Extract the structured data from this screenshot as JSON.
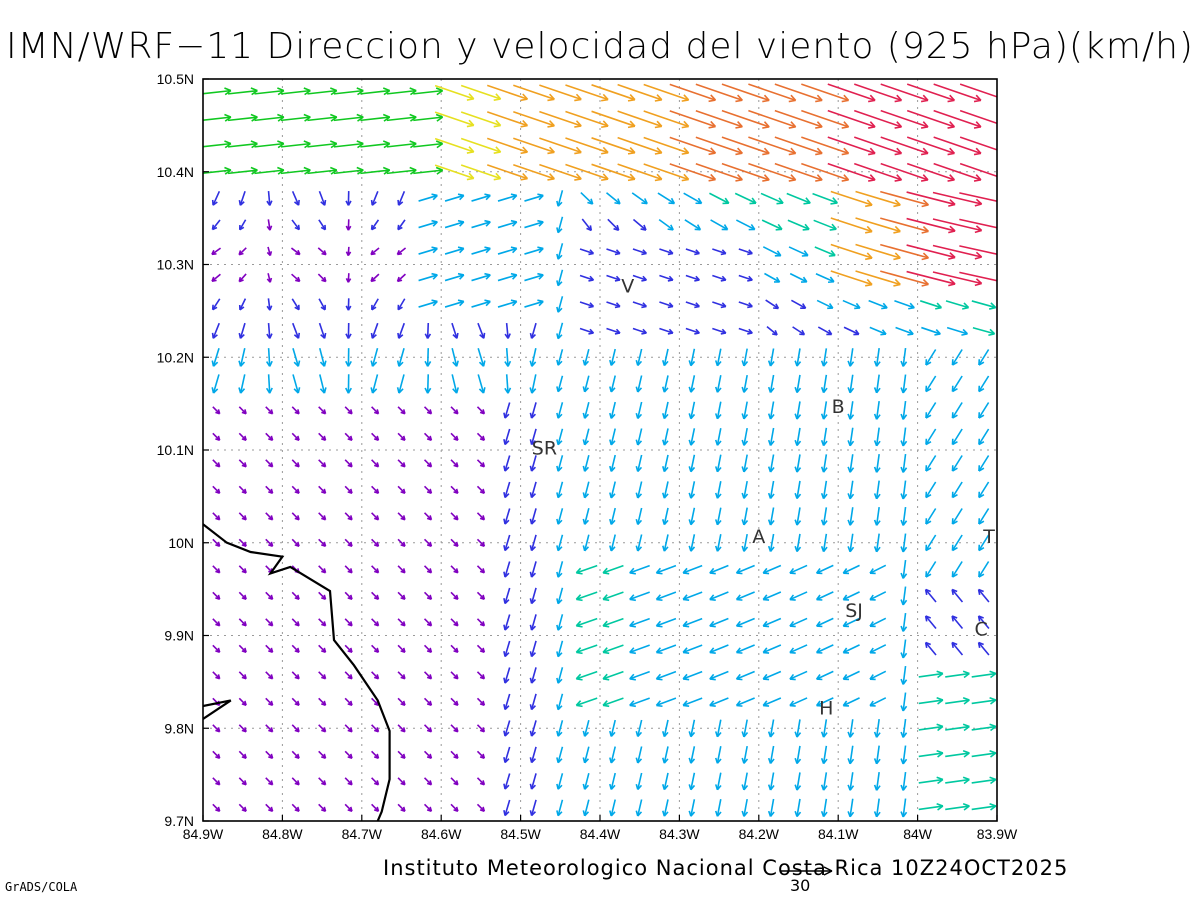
{
  "title": "IMN/WRF−11 Direccion y velocidad del viento (925 hPa)(km/h)",
  "footer": "Instituto Meteorologico Nacional Costa Rica 10Z24OCT2025",
  "credit": "GrADS/COLA",
  "scale_label": "30",
  "map": {
    "lon_range": [
      -84.9,
      -83.9
    ],
    "lat_range": [
      9.7,
      10.5
    ],
    "grid": true,
    "lon_ticks": [
      {
        "v": -84.9,
        "label": "84.9W"
      },
      {
        "v": -84.8,
        "label": "84.8W"
      },
      {
        "v": -84.7,
        "label": "84.7W"
      },
      {
        "v": -84.6,
        "label": "84.6W"
      },
      {
        "v": -84.5,
        "label": "84.5W"
      },
      {
        "v": -84.4,
        "label": "84.4W"
      },
      {
        "v": -84.3,
        "label": "84.3W"
      },
      {
        "v": -84.2,
        "label": "84.2W"
      },
      {
        "v": -84.1,
        "label": "84.1W"
      },
      {
        "v": -84.0,
        "label": "84W"
      },
      {
        "v": -83.9,
        "label": "83.9W"
      }
    ],
    "lat_ticks": [
      {
        "v": 10.5,
        "label": "10.5N"
      },
      {
        "v": 10.4,
        "label": "10.4N"
      },
      {
        "v": 10.3,
        "label": "10.3N"
      },
      {
        "v": 10.2,
        "label": "10.2N"
      },
      {
        "v": 10.1,
        "label": "10.1N"
      },
      {
        "v": 10.0,
        "label": "10N"
      },
      {
        "v": 9.9,
        "label": "9.9N"
      },
      {
        "v": 9.8,
        "label": "9.8N"
      },
      {
        "v": 9.7,
        "label": "9.7N"
      }
    ],
    "cities": [
      {
        "label": "V",
        "lon": -84.365,
        "lat": 10.27
      },
      {
        "label": "SR",
        "lon": -84.47,
        "lat": 10.095
      },
      {
        "label": "B",
        "lon": -84.1,
        "lat": 10.14
      },
      {
        "label": "A",
        "lon": -84.2,
        "lat": 10.0
      },
      {
        "label": "SJ",
        "lon": -84.08,
        "lat": 9.92
      },
      {
        "label": "C",
        "lon": -83.92,
        "lat": 9.9
      },
      {
        "label": "H",
        "lon": -84.115,
        "lat": 9.815
      },
      {
        "label": "T",
        "lon": -83.91,
        "lat": 10.0
      }
    ],
    "coastline": [
      [
        [
          -84.9,
          10.02
        ],
        [
          -84.87,
          10.0
        ],
        [
          -84.84,
          9.99
        ],
        [
          -84.8,
          9.985
        ],
        [
          -84.815,
          9.967
        ],
        [
          -84.79,
          9.974
        ],
        [
          -84.74,
          9.948
        ],
        [
          -84.735,
          9.895
        ],
        [
          -84.71,
          9.868
        ],
        [
          -84.68,
          9.83
        ],
        [
          -84.665,
          9.797
        ],
        [
          -84.665,
          9.745
        ],
        [
          -84.675,
          9.71
        ],
        [
          -84.68,
          9.7
        ]
      ],
      [
        [
          -84.9,
          9.824
        ],
        [
          -84.865,
          9.83
        ],
        [
          -84.9,
          9.81
        ]
      ]
    ],
    "palette": [
      "#8000c0",
      "#3030e0",
      "#00a8e8",
      "#00c8a0",
      "#10c820",
      "#90d820",
      "#e6e020",
      "#f0a020",
      "#e87030",
      "#e02050"
    ],
    "scale_speed_kmh": 30
  }
}
